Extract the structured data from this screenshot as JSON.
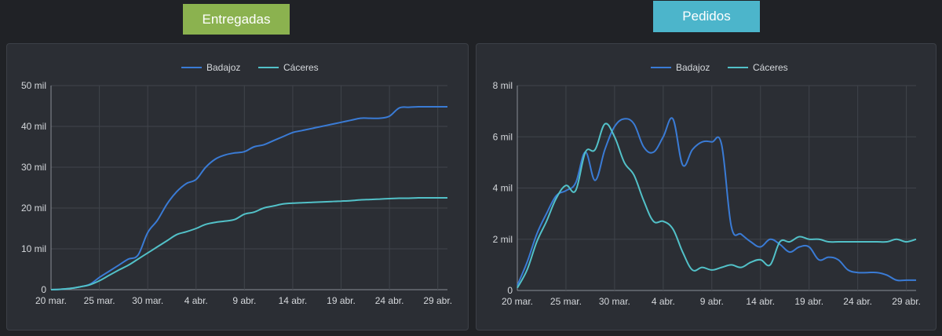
{
  "header": {
    "left_title": "Entregadas",
    "right_title": "Pedidos"
  },
  "colors": {
    "background": "#202226",
    "panel": "#2b2e34",
    "grid": "#40444b",
    "badajoz": "#3a7bd5",
    "caceres": "#52c1c8",
    "entregadas_tag": "#8bb24f",
    "pedidos_tag": "#4cb5cb"
  },
  "chart_data": [
    {
      "type": "line",
      "title": "Entregadas",
      "x_ticks": [
        "20 mar.",
        "25 mar.",
        "30 mar.",
        "4 abr.",
        "9 abr.",
        "14 abr.",
        "19 abr.",
        "24 abr.",
        "29 abr."
      ],
      "y_ticks": [
        "0",
        "10 mil",
        "20 mil",
        "30 mil",
        "40 mil",
        "50 mil"
      ],
      "ylim": [
        0,
        50000
      ],
      "x_range_days": [
        0,
        41
      ],
      "legend_position": "top-center",
      "grid": true,
      "series": [
        {
          "name": "Badajoz",
          "x": [
            0,
            1,
            2,
            3,
            4,
            5,
            6,
            7,
            8,
            9,
            10,
            11,
            12,
            13,
            14,
            15,
            16,
            17,
            18,
            19,
            20,
            21,
            22,
            23,
            24,
            25,
            26,
            27,
            28,
            29,
            30,
            31,
            32,
            33,
            34,
            35,
            36,
            37,
            38,
            39,
            40,
            41
          ],
          "values": [
            0,
            100,
            300,
            700,
            1300,
            3000,
            4500,
            6000,
            7500,
            8500,
            14000,
            17000,
            21000,
            24000,
            26000,
            27000,
            30000,
            32000,
            33000,
            33500,
            33800,
            35000,
            35500,
            36500,
            37500,
            38500,
            39000,
            39500,
            40000,
            40500,
            41000,
            41500,
            42000,
            42000,
            42000,
            42500,
            44500,
            44700,
            44800,
            44800,
            44800,
            44800
          ]
        },
        {
          "name": "Cáceres",
          "x": [
            0,
            1,
            2,
            3,
            4,
            5,
            6,
            7,
            8,
            9,
            10,
            11,
            12,
            13,
            14,
            15,
            16,
            17,
            18,
            19,
            20,
            21,
            22,
            23,
            24,
            25,
            26,
            27,
            28,
            29,
            30,
            31,
            32,
            33,
            34,
            35,
            36,
            37,
            38,
            39,
            40,
            41
          ],
          "values": [
            0,
            100,
            300,
            700,
            1200,
            2200,
            3500,
            4800,
            6000,
            7500,
            9000,
            10500,
            12000,
            13500,
            14200,
            15000,
            16000,
            16500,
            16800,
            17200,
            18500,
            19000,
            20000,
            20500,
            21000,
            21200,
            21300,
            21400,
            21500,
            21600,
            21700,
            21800,
            22000,
            22100,
            22200,
            22300,
            22400,
            22400,
            22500,
            22500,
            22500,
            22500
          ]
        }
      ]
    },
    {
      "type": "line",
      "title": "Pedidos",
      "x_ticks": [
        "20 mar.",
        "25 mar.",
        "30 mar.",
        "4 abr.",
        "9 abr.",
        "14 abr.",
        "19 abr.",
        "24 abr.",
        "29 abr."
      ],
      "y_ticks": [
        "0",
        "2 mil",
        "4 mil",
        "6 mil",
        "8 mil"
      ],
      "ylim": [
        0,
        8000
      ],
      "x_range_days": [
        0,
        41
      ],
      "legend_position": "top-center",
      "grid": true,
      "series": [
        {
          "name": "Badajoz",
          "x": [
            0,
            1,
            2,
            3,
            4,
            5,
            6,
            7,
            8,
            9,
            10,
            11,
            12,
            13,
            14,
            15,
            16,
            17,
            18,
            19,
            20,
            21,
            22,
            23,
            24,
            25,
            26,
            27,
            28,
            29,
            30,
            31,
            32,
            33,
            34,
            35,
            36,
            37,
            38,
            39,
            40,
            41
          ],
          "values": [
            200,
            1100,
            2200,
            3000,
            3700,
            3900,
            4200,
            5400,
            4300,
            5500,
            6400,
            6700,
            6500,
            5600,
            5400,
            6000,
            6700,
            4900,
            5500,
            5800,
            5800,
            5700,
            2500,
            2200,
            1900,
            1700,
            2000,
            1800,
            1500,
            1700,
            1700,
            1200,
            1300,
            1200,
            800,
            700,
            700,
            700,
            600,
            400,
            400,
            400
          ]
        },
        {
          "name": "Cáceres",
          "x": [
            0,
            1,
            2,
            3,
            4,
            5,
            6,
            7,
            8,
            9,
            10,
            11,
            12,
            13,
            14,
            15,
            16,
            17,
            18,
            19,
            20,
            21,
            22,
            23,
            24,
            25,
            26,
            27,
            28,
            29,
            30,
            31,
            32,
            33,
            34,
            35,
            36,
            37,
            38,
            39,
            40,
            41
          ],
          "values": [
            100,
            800,
            1900,
            2700,
            3600,
            4100,
            3900,
            5400,
            5500,
            6500,
            6000,
            5000,
            4500,
            3500,
            2700,
            2700,
            2400,
            1500,
            800,
            900,
            800,
            900,
            1000,
            900,
            1100,
            1200,
            1000,
            1900,
            1900,
            2100,
            2000,
            2000,
            1900,
            1900,
            1900,
            1900,
            1900,
            1900,
            1900,
            2000,
            1900,
            2000
          ]
        }
      ]
    }
  ]
}
